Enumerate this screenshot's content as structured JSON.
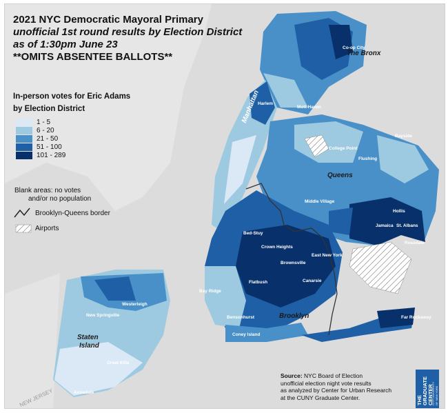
{
  "title": {
    "line1": "2021 NYC Democratic Mayoral Primary",
    "line2": "unofficial 1st round results by Election District",
    "line3": "as of 1:30pm June 23",
    "line4": "**OMITS ABSENTEE BALLOTS**"
  },
  "legend": {
    "heading1": "In-person votes for Eric Adams",
    "heading2": "by Election District",
    "classes": [
      {
        "label": "1 - 5",
        "color": "#dbe9f6"
      },
      {
        "label": "6 - 20",
        "color": "#9ecae1"
      },
      {
        "label": "21 - 50",
        "color": "#4a90c8"
      },
      {
        "label": "51 - 100",
        "color": "#1f5fa5"
      },
      {
        "label": "101 - 289",
        "color": "#08306b"
      }
    ],
    "blank_note_1": "Blank areas: no votes",
    "blank_note_2": "and/or no population",
    "border_label": "Brooklyn-Queens border",
    "airports_label": "Airports"
  },
  "map_labels": {
    "boroughs": {
      "bronx": "The Bronx",
      "manhattan": "Manhattan",
      "queens": "Queens",
      "brooklyn": "Brooklyn",
      "staten_island_1": "Staten",
      "staten_island_2": "Island"
    },
    "neighborhoods": [
      "Co-op City",
      "Middle Village",
      "Flushing",
      "Jamaica",
      "St. Albans",
      "Canarsie",
      "East New York",
      "Brownsville",
      "Crown Heights",
      "Bed-Stuy",
      "Flatbush",
      "Harlem",
      "Mott Haven",
      "Hollis",
      "Rosedale",
      "Far Rockaway",
      "Bayside",
      "College Point",
      "Westerleigh",
      "Annadale",
      "New Springville",
      "Great Kills",
      "Bay Ridge",
      "Bensonhurst",
      "Coney Island"
    ],
    "nj_label": "NEW JERSEY"
  },
  "source": {
    "label": "Source:",
    "line1": "NYC Board of Election",
    "line2": "unofficial election night vote results",
    "line3": "as analyzed by Center for Urban Research",
    "line4": "at the CUNY Graduate Center."
  },
  "logo": {
    "main1": "THE",
    "main2": "GRADUATE",
    "main3": "CENTER",
    "sub1": "CITY UNIVERSITY",
    "sub2": "OF NEW YORK"
  }
}
